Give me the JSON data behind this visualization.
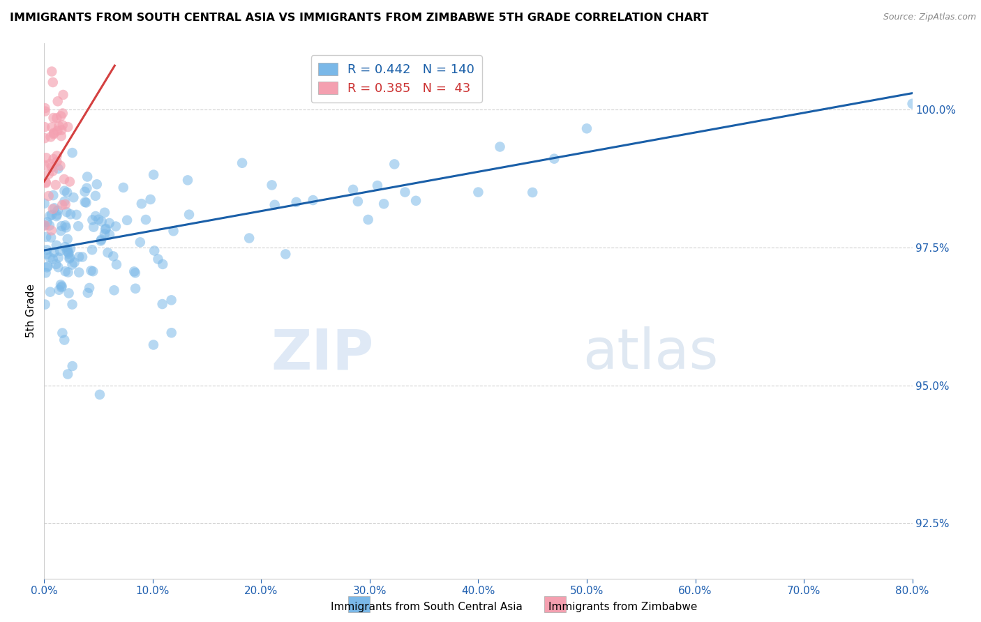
{
  "title": "IMMIGRANTS FROM SOUTH CENTRAL ASIA VS IMMIGRANTS FROM ZIMBABWE 5TH GRADE CORRELATION CHART",
  "source": "Source: ZipAtlas.com",
  "ylabel": "5th Grade",
  "x_min": 0.0,
  "x_max": 80.0,
  "y_min": 91.5,
  "y_max": 101.2,
  "y_ticks": [
    92.5,
    95.0,
    97.5,
    100.0
  ],
  "x_ticks": [
    0.0,
    10.0,
    20.0,
    30.0,
    40.0,
    50.0,
    60.0,
    70.0,
    80.0
  ],
  "blue_R": 0.442,
  "blue_N": 140,
  "pink_R": 0.385,
  "pink_N": 43,
  "blue_color": "#7ab8e8",
  "pink_color": "#f4a0b0",
  "blue_line_color": "#1a5fa8",
  "pink_line_color": "#d44040",
  "legend_label_blue": "Immigrants from South Central Asia",
  "legend_label_pink": "Immigrants from Zimbabwe",
  "watermark_zip": "ZIP",
  "watermark_atlas": "atlas",
  "blue_trend_x0": 0.0,
  "blue_trend_y0": 97.45,
  "blue_trend_x1": 80.0,
  "blue_trend_y1": 100.3,
  "pink_trend_x0": 0.0,
  "pink_trend_y0": 98.7,
  "pink_trend_x1": 6.5,
  "pink_trend_y1": 100.8
}
